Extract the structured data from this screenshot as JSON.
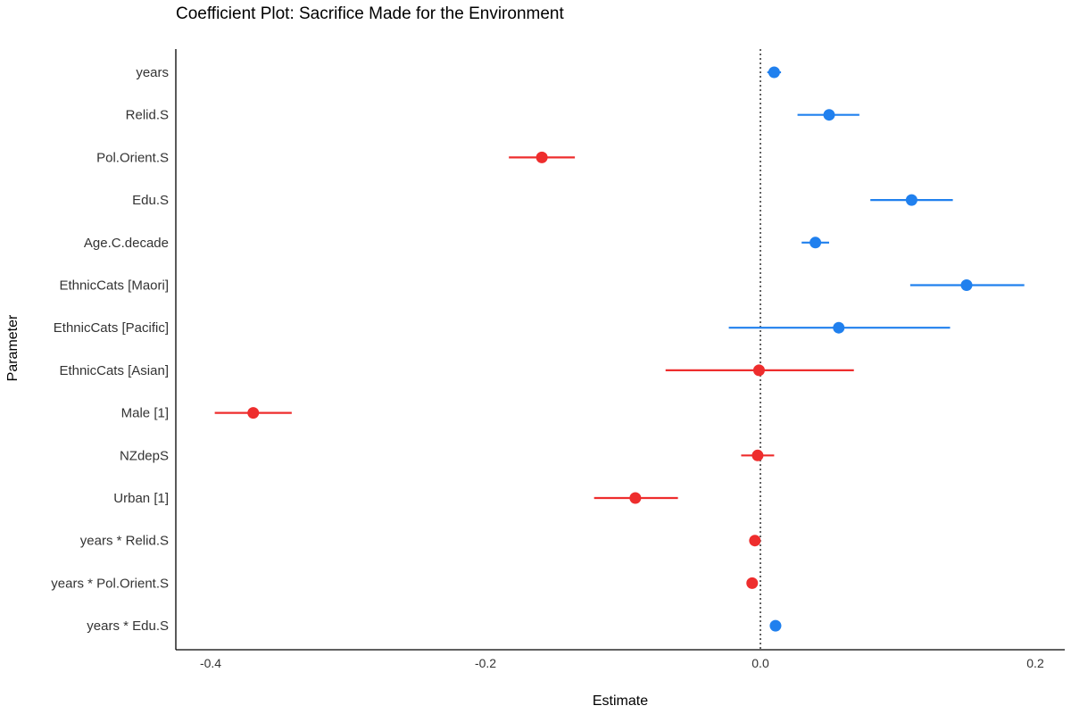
{
  "chart_data": {
    "type": "scatter",
    "title": "Coefficient Plot: Sacrifice Made for the Environment",
    "xlabel": "Estimate",
    "ylabel": "Parameter",
    "xlim": [
      -0.42,
      0.22
    ],
    "xticks": [
      -0.4,
      -0.2,
      0.0,
      0.2
    ],
    "xtick_labels": [
      "-0.4",
      "-0.2",
      "0.0",
      "0.2"
    ],
    "reference_line": 0,
    "grid": false,
    "legend": "none",
    "colors": {
      "positive": "#2080EE",
      "negative": "#EE2D2D"
    },
    "parameters": [
      {
        "label": "years",
        "estimate": 0.01,
        "lower": 0.005,
        "upper": 0.015
      },
      {
        "label": "Relid.S",
        "estimate": 0.05,
        "lower": 0.027,
        "upper": 0.072
      },
      {
        "label": "Pol.Orient.S",
        "estimate": -0.159,
        "lower": -0.183,
        "upper": -0.135
      },
      {
        "label": "Edu.S",
        "estimate": 0.11,
        "lower": 0.08,
        "upper": 0.14
      },
      {
        "label": "Age.C.decade",
        "estimate": 0.04,
        "lower": 0.03,
        "upper": 0.05
      },
      {
        "label": "EthnicCats [Maori]",
        "estimate": 0.15,
        "lower": 0.109,
        "upper": 0.192
      },
      {
        "label": "EthnicCats [Pacific]",
        "estimate": 0.057,
        "lower": -0.023,
        "upper": 0.138
      },
      {
        "label": "EthnicCats [Asian]",
        "estimate": -0.001,
        "lower": -0.069,
        "upper": 0.068
      },
      {
        "label": "Male [1]",
        "estimate": -0.369,
        "lower": -0.397,
        "upper": -0.341
      },
      {
        "label": "NZdepS",
        "estimate": -0.002,
        "lower": -0.014,
        "upper": 0.01
      },
      {
        "label": "Urban [1]",
        "estimate": -0.091,
        "lower": -0.121,
        "upper": -0.06
      },
      {
        "label": "years * Relid.S",
        "estimate": -0.004,
        "lower": -0.007,
        "upper": -0.001
      },
      {
        "label": "years * Pol.Orient.S",
        "estimate": -0.006,
        "lower": -0.009,
        "upper": -0.003
      },
      {
        "label": "years * Edu.S",
        "estimate": 0.011,
        "lower": 0.007,
        "upper": 0.015
      }
    ]
  }
}
